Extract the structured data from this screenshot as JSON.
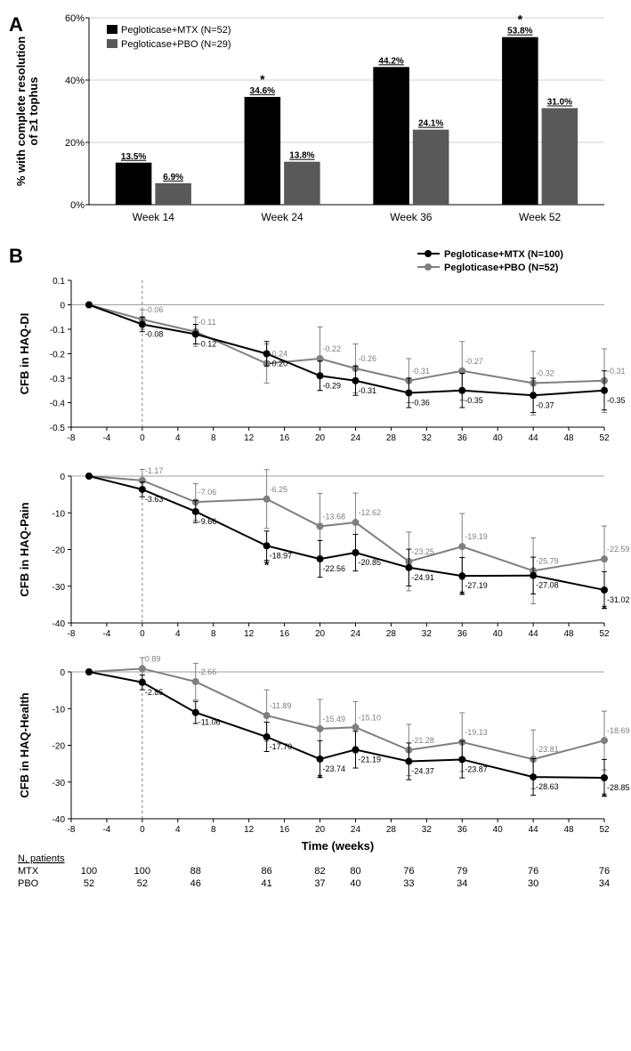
{
  "panelA": {
    "label": "A",
    "type": "bar",
    "ylabel": "% with complete resolution\nof ≥1 tophus",
    "categories": [
      "Week 14",
      "Week 24",
      "Week 36",
      "Week 52"
    ],
    "series": [
      {
        "name": "Pegloticase+MTX (N=52)",
        "color": "#000000",
        "values": [
          13.5,
          34.6,
          44.2,
          53.8
        ],
        "stars": [
          false,
          true,
          false,
          true
        ]
      },
      {
        "name": "Pegloticase+PBO (N=29)",
        "color": "#595959",
        "values": [
          6.9,
          13.8,
          24.1,
          31.0
        ],
        "stars": [
          false,
          false,
          false,
          false
        ]
      }
    ],
    "ylim": [
      0,
      60
    ],
    "ytick_step": 20,
    "bar_width": 0.35
  },
  "panelB": {
    "label": "B",
    "xlabel": "Time (weeks)",
    "xvalues": [
      -6,
      0,
      6,
      14,
      20,
      24,
      30,
      36,
      44,
      52
    ],
    "xlim": [
      -8,
      52
    ],
    "xtick_step": 4,
    "legend": [
      {
        "name": "Pegloticase+MTX (N=100)",
        "color": "#000000"
      },
      {
        "name": "Pegloticase+PBO (N=52)",
        "color": "#7f7f7f"
      }
    ],
    "charts": [
      {
        "ylabel": "CFB in HAQ-DI",
        "ylim": [
          -0.5,
          0.1
        ],
        "yticks": [
          -0.5,
          -0.4,
          -0.3,
          -0.2,
          -0.1,
          0,
          0.1
        ],
        "mtx": {
          "y": [
            0,
            -0.08,
            -0.12,
            -0.2,
            -0.29,
            -0.31,
            -0.36,
            -0.35,
            -0.37,
            -0.35
          ],
          "err": [
            0,
            0.03,
            0.04,
            0.05,
            0.06,
            0.06,
            0.06,
            0.07,
            0.07,
            0.08
          ],
          "labels": [
            "",
            "-0.08",
            "-0.12",
            "-0.20",
            "-0.29",
            "-0.31",
            "-0.36",
            "-0.35",
            "-0.37",
            "-0.35"
          ],
          "stars": [
            false,
            false,
            false,
            false,
            false,
            false,
            false,
            false,
            false,
            false
          ]
        },
        "pbo": {
          "y": [
            0,
            -0.06,
            -0.11,
            -0.24,
            -0.22,
            -0.26,
            -0.31,
            -0.27,
            -0.32,
            -0.31
          ],
          "err": [
            0,
            0.04,
            0.06,
            0.08,
            0.13,
            0.1,
            0.09,
            0.12,
            0.13,
            0.13
          ],
          "labels": [
            "",
            "-0.06",
            "-0.11",
            "-0.24",
            "-0.22",
            "-0.26",
            "-0.31",
            "-0.27",
            "-0.32",
            "-0.31"
          ],
          "stars": [
            false,
            false,
            false,
            false,
            false,
            false,
            false,
            false,
            false,
            false
          ]
        }
      },
      {
        "ylabel": "CFB in HAQ-Pain",
        "ylim": [
          -40,
          0
        ],
        "yticks": [
          -40,
          -30,
          -20,
          -10,
          0
        ],
        "mtx": {
          "y": [
            0,
            -3.63,
            -9.66,
            -18.97,
            -22.56,
            -20.85,
            -24.91,
            -27.19,
            -27.08,
            -31.02
          ],
          "err": [
            0,
            2,
            3,
            4,
            5,
            5,
            5,
            5,
            5,
            5
          ],
          "labels": [
            "",
            "-3.63",
            "-9.66",
            "-18.97",
            "-22.56",
            "-20.85",
            "-24.91",
            "-27.19",
            "-27.08",
            "-31.02"
          ],
          "stars": [
            false,
            false,
            false,
            true,
            false,
            false,
            false,
            true,
            false,
            true
          ]
        },
        "pbo": {
          "y": [
            0,
            -1.17,
            -7.06,
            -6.25,
            -13.68,
            -12.62,
            -23.25,
            -19.19,
            -25.79,
            -22.59
          ],
          "err": [
            0,
            3,
            5,
            8,
            9,
            8,
            8,
            9,
            9,
            9
          ],
          "labels": [
            "",
            "-1.17",
            "-7.06",
            "-6.25",
            "-13.68",
            "-12.62",
            "-23.25",
            "-19.19",
            "-25.79",
            "-22.59"
          ],
          "stars": [
            false,
            false,
            false,
            false,
            false,
            false,
            false,
            false,
            false,
            false
          ]
        }
      },
      {
        "ylabel": "CFB in HAQ-Health",
        "ylim": [
          -40,
          0
        ],
        "yticks": [
          -40,
          -30,
          -20,
          -10,
          0
        ],
        "mtx": {
          "y": [
            0,
            -2.85,
            -11.06,
            -17.7,
            -23.74,
            -21.19,
            -24.37,
            -23.87,
            -28.63,
            -28.85
          ],
          "err": [
            0,
            2,
            3,
            4,
            5,
            5,
            5,
            5,
            5,
            5
          ],
          "labels": [
            "",
            "-2.85",
            "-11.06",
            "-17.70",
            "-23.74",
            "-21.19",
            "-24.37",
            "-23.87",
            "-28.63",
            "-28.85"
          ],
          "stars": [
            false,
            false,
            false,
            false,
            true,
            false,
            false,
            false,
            false,
            true
          ]
        },
        "pbo": {
          "y": [
            0,
            0.89,
            -2.66,
            -11.89,
            -15.49,
            -15.1,
            -21.28,
            -19.13,
            -23.81,
            -18.69
          ],
          "err": [
            0,
            3,
            5,
            7,
            8,
            7,
            7,
            8,
            8,
            8
          ],
          "labels": [
            "",
            "0.89",
            "-2.66",
            "-11.89",
            "-15.49",
            "-15.10",
            "-21.28",
            "-19.13",
            "-23.81",
            "-18.69"
          ],
          "stars": [
            false,
            false,
            false,
            false,
            false,
            false,
            false,
            false,
            false,
            false
          ]
        }
      }
    ],
    "patient_table": {
      "header": "N, patients",
      "xvalues": [
        -6,
        0,
        6,
        14,
        20,
        24,
        30,
        36,
        44,
        52
      ],
      "rows": [
        {
          "label": "MTX",
          "values": [
            100,
            100,
            88,
            86,
            82,
            80,
            76,
            79,
            76,
            76
          ]
        },
        {
          "label": "PBO",
          "values": [
            52,
            52,
            46,
            41,
            37,
            40,
            33,
            34,
            30,
            34
          ]
        }
      ]
    }
  }
}
